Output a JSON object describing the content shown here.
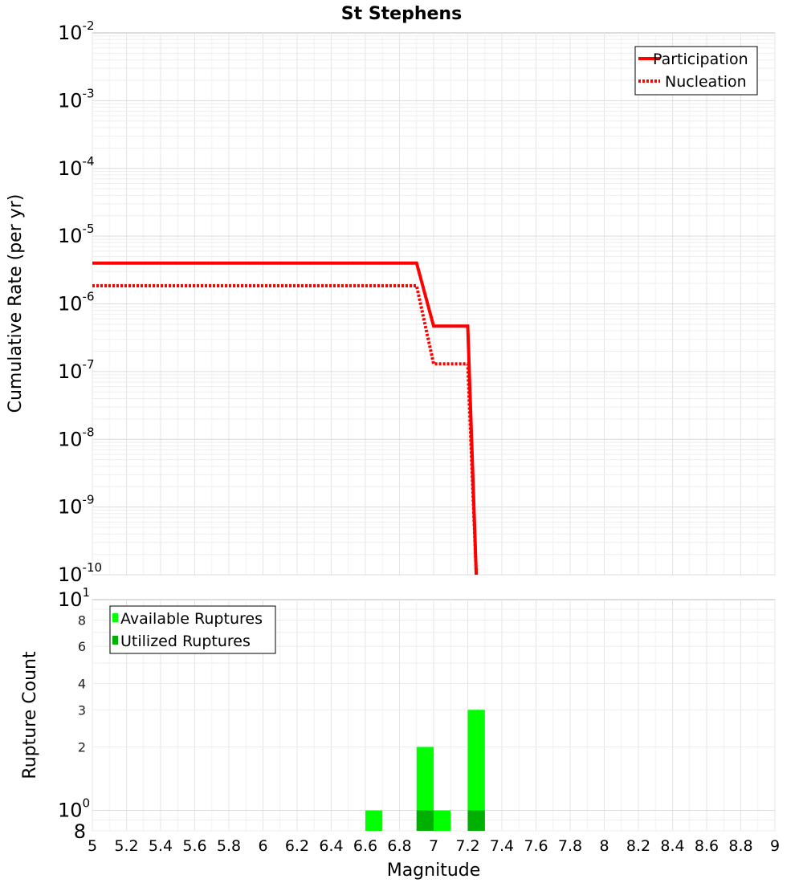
{
  "chart_data": [
    {
      "type": "line",
      "title": "St Stephens",
      "xlabel": "Magnitude",
      "ylabel": "Cumulative Rate (per yr)",
      "yscale": "log",
      "xlim": [
        5,
        9
      ],
      "ylim": [
        1e-10,
        0.01
      ],
      "yticks": [
        {
          "base": "10",
          "exp": "-2"
        },
        {
          "base": "10",
          "exp": "-3"
        },
        {
          "base": "10",
          "exp": "-4"
        },
        {
          "base": "10",
          "exp": "-5"
        },
        {
          "base": "10",
          "exp": "-6"
        },
        {
          "base": "10",
          "exp": "-7"
        },
        {
          "base": "10",
          "exp": "-8"
        },
        {
          "base": "10",
          "exp": "-9"
        },
        {
          "base": "10",
          "exp": "-10"
        }
      ],
      "legend_position": "top-right",
      "series": [
        {
          "name": "Participation",
          "style": "solid",
          "color": "#ff0000",
          "x": [
            5.0,
            6.9,
            7.0,
            7.2,
            7.25
          ],
          "y": [
            4e-06,
            4e-06,
            4.7e-07,
            4.7e-07,
            1e-10
          ]
        },
        {
          "name": "Nucleation",
          "style": "dotted",
          "color": "#ff0000",
          "x": [
            5.0,
            6.9,
            7.0,
            7.2,
            7.25
          ],
          "y": [
            1.85e-06,
            1.85e-06,
            1.3e-07,
            1.3e-07,
            1e-10
          ]
        }
      ]
    },
    {
      "type": "bar",
      "xlabel": "Magnitude",
      "ylabel": "Rupture Count",
      "yscale": "log",
      "xlim": [
        5,
        9
      ],
      "ylim": [
        0.8,
        10
      ],
      "xticks": [
        "5",
        "5.2",
        "5.4",
        "5.6",
        "5.8",
        "6",
        "6.2",
        "6.4",
        "6.6",
        "6.8",
        "7",
        "7.2",
        "7.4",
        "7.6",
        "7.8",
        "8",
        "8.2",
        "8.4",
        "8.6",
        "8.8",
        "9"
      ],
      "ytick_majors": [
        {
          "base": "10",
          "exp": "1",
          "value": 10
        },
        {
          "base": "10",
          "exp": "0",
          "value": 1
        }
      ],
      "ytick_minors": [
        {
          "label": "8",
          "value": 8
        },
        {
          "label": "6",
          "value": 6
        },
        {
          "label": "4",
          "value": 4
        },
        {
          "label": "3",
          "value": 3
        },
        {
          "label": "2",
          "value": 2
        }
      ],
      "ytick_bottom": {
        "label": "8",
        "value": 0.8
      },
      "bar_width": 0.1,
      "legend_position": "top-left",
      "series": [
        {
          "name": "Available Ruptures",
          "color": "#00ff00",
          "bins": [
            6.65,
            6.95,
            7.05,
            7.25
          ],
          "values": [
            1,
            2,
            1,
            3
          ]
        },
        {
          "name": "Utilized Ruptures",
          "color": "#00b000",
          "bins": [
            6.95,
            7.25
          ],
          "values": [
            1,
            1
          ]
        }
      ]
    }
  ]
}
